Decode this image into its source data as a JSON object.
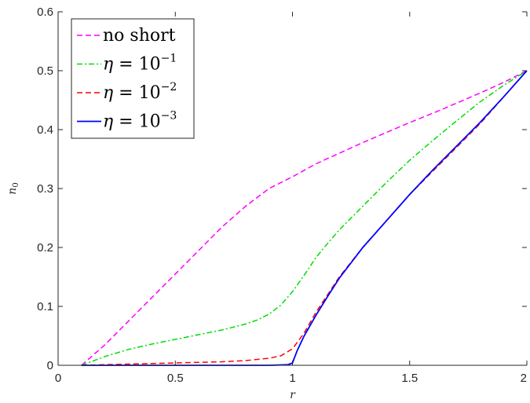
{
  "chart_data": {
    "type": "line",
    "xlabel": "r",
    "ylabel": "n",
    "ylabel_subscript": "0",
    "xlim": [
      0,
      2
    ],
    "ylim": [
      0,
      0.6
    ],
    "x_ticks": [
      "0",
      "0.5",
      "1",
      "1.5",
      "2"
    ],
    "y_ticks": [
      "0",
      "0.1",
      "0.2",
      "0.3",
      "0.4",
      "0.5",
      "0.6"
    ],
    "grid": false,
    "legend_position": "top-left",
    "series": [
      {
        "name": "no short",
        "color": "#ff00ff",
        "dash": "dashed",
        "x": [
          0.1,
          0.2,
          0.3,
          0.4,
          0.5,
          0.6,
          0.7,
          0.8,
          0.9,
          1.0,
          1.1,
          1.2,
          1.3,
          1.4,
          1.5,
          1.6,
          1.7,
          1.8,
          1.9,
          2.0
        ],
        "y": [
          0.0,
          0.035,
          0.075,
          0.115,
          0.155,
          0.195,
          0.235,
          0.27,
          0.3,
          0.32,
          0.342,
          0.36,
          0.378,
          0.395,
          0.412,
          0.428,
          0.445,
          0.462,
          0.48,
          0.5
        ]
      },
      {
        "name": "η = 10",
        "name_sup": "−1",
        "color": "#00dd00",
        "dash": "dashdot",
        "x": [
          0.1,
          0.2,
          0.3,
          0.4,
          0.5,
          0.6,
          0.7,
          0.8,
          0.85,
          0.9,
          0.95,
          1.0,
          1.05,
          1.1,
          1.15,
          1.2,
          1.3,
          1.4,
          1.5,
          1.6,
          1.7,
          1.8,
          1.9,
          2.0
        ],
        "y": [
          0.0,
          0.015,
          0.027,
          0.036,
          0.044,
          0.052,
          0.06,
          0.07,
          0.077,
          0.087,
          0.102,
          0.125,
          0.153,
          0.183,
          0.207,
          0.23,
          0.27,
          0.31,
          0.348,
          0.382,
          0.415,
          0.447,
          0.475,
          0.5
        ]
      },
      {
        "name": "η = 10",
        "name_sup": "−2",
        "color": "#ff0000",
        "dash": "dashed",
        "x": [
          0.1,
          0.3,
          0.5,
          0.7,
          0.8,
          0.9,
          0.95,
          1.0,
          1.05,
          1.1,
          1.15,
          1.2,
          1.3,
          1.4,
          1.5,
          1.6,
          1.7,
          1.8,
          1.9,
          2.0
        ],
        "y": [
          0.0,
          0.002,
          0.004,
          0.006,
          0.008,
          0.012,
          0.016,
          0.028,
          0.055,
          0.09,
          0.12,
          0.15,
          0.2,
          0.245,
          0.29,
          0.33,
          0.37,
          0.41,
          0.455,
          0.5
        ]
      },
      {
        "name": "η = 10",
        "name_sup": "−3",
        "color": "#0000ff",
        "dash": "solid",
        "x": [
          0.1,
          0.3,
          0.5,
          0.7,
          0.9,
          0.98,
          1.0,
          1.02,
          1.05,
          1.1,
          1.15,
          1.2,
          1.3,
          1.4,
          1.5,
          1.6,
          1.7,
          1.8,
          1.9,
          2.0
        ],
        "y": [
          0.0,
          0.0,
          0.0,
          0.0,
          0.0,
          0.001,
          0.004,
          0.025,
          0.05,
          0.085,
          0.117,
          0.148,
          0.2,
          0.245,
          0.29,
          0.332,
          0.372,
          0.412,
          0.455,
          0.5
        ]
      }
    ]
  }
}
